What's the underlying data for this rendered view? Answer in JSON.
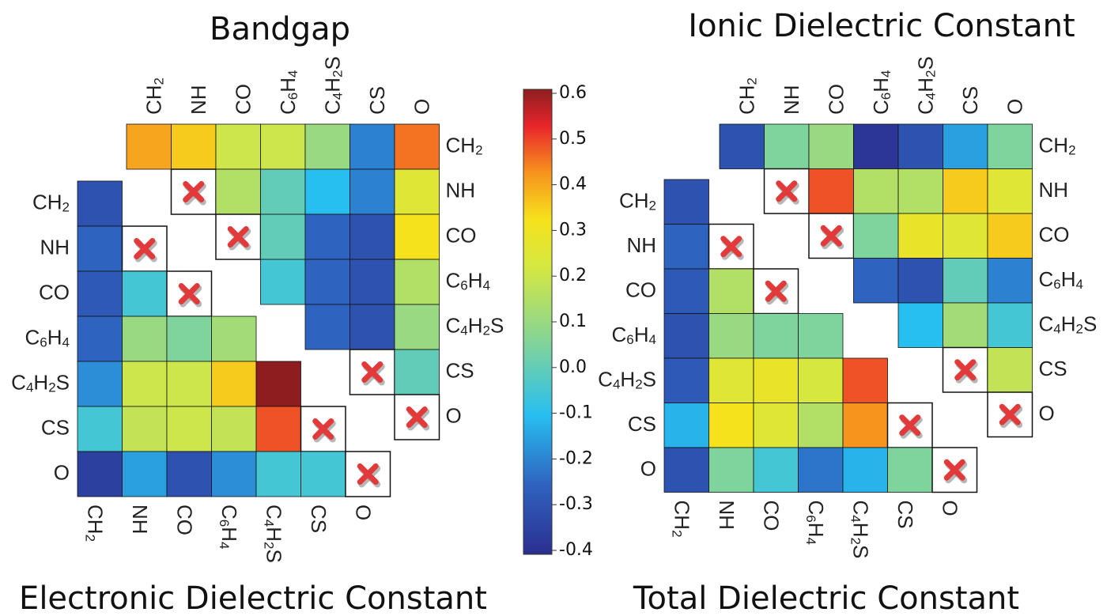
{
  "colorbar": {
    "ticks": [
      "0.6",
      "0.5",
      "0.4",
      "0.3",
      "0.2",
      "0.1",
      "0.0",
      "-0.1",
      "-0.2",
      "-0.3",
      "-0.4"
    ],
    "range": [
      -0.4,
      0.6
    ]
  },
  "chart_data": [
    {
      "type": "heatmap",
      "title": "Bandgap",
      "labels": [
        "CH2",
        "NH",
        "CO",
        "C6H4",
        "C4H2S",
        "CS",
        "O"
      ],
      "layout": "upper-triangle",
      "cells": [
        [
          0.4,
          0.35,
          0.2,
          0.2,
          0.1,
          -0.2,
          0.45
        ],
        [
          null,
          "x",
          0.15,
          0.0,
          -0.1,
          -0.2,
          0.25
        ],
        [
          null,
          null,
          "x",
          0.0,
          -0.25,
          -0.3,
          0.32
        ],
        [
          null,
          null,
          null,
          -0.05,
          -0.25,
          -0.3,
          0.15
        ],
        [
          null,
          null,
          null,
          null,
          -0.25,
          -0.3,
          0.1
        ],
        [
          null,
          null,
          null,
          null,
          null,
          "x",
          0.0
        ],
        [
          null,
          null,
          null,
          null,
          null,
          null,
          "x"
        ]
      ]
    },
    {
      "type": "heatmap",
      "title": "Electronic Dielectric Constant",
      "labels": [
        "CH2",
        "NH",
        "CO",
        "C6H4",
        "C4H2S",
        "CS",
        "O"
      ],
      "layout": "lower-triangle",
      "cells": [
        [
          -0.3,
          null,
          null,
          null,
          null,
          null,
          null
        ],
        [
          -0.25,
          "x",
          null,
          null,
          null,
          null,
          null
        ],
        [
          -0.28,
          -0.05,
          "x",
          null,
          null,
          null,
          null
        ],
        [
          -0.25,
          0.1,
          0.05,
          0.12,
          null,
          null,
          null
        ],
        [
          -0.18,
          0.2,
          0.2,
          0.35,
          0.6,
          null,
          null
        ],
        [
          -0.05,
          0.18,
          0.2,
          0.18,
          0.48,
          "x",
          null
        ],
        [
          -0.35,
          -0.15,
          -0.3,
          -0.18,
          -0.05,
          -0.05,
          "x"
        ]
      ]
    },
    {
      "type": "heatmap",
      "title": "Ionic Dielectric Constant",
      "labels": [
        "CH2",
        "NH",
        "CO",
        "C6H4",
        "C4H2S",
        "CS",
        "O"
      ],
      "layout": "upper-triangle",
      "cells": [
        [
          -0.3,
          0.05,
          0.1,
          -0.38,
          -0.3,
          -0.15,
          0.05
        ],
        [
          null,
          "x",
          0.48,
          0.15,
          0.15,
          0.35,
          0.25
        ],
        [
          null,
          null,
          "x",
          0.05,
          0.28,
          0.25,
          0.35
        ],
        [
          null,
          null,
          null,
          -0.25,
          -0.3,
          0.0,
          -0.2
        ],
        [
          null,
          null,
          null,
          null,
          -0.1,
          0.12,
          -0.05
        ],
        [
          null,
          null,
          null,
          null,
          null,
          "x",
          0.18
        ],
        [
          null,
          null,
          null,
          null,
          null,
          null,
          "x"
        ]
      ]
    },
    {
      "type": "heatmap",
      "title": "Total Dielectric Constant",
      "labels": [
        "CH2",
        "NH",
        "CO",
        "C6H4",
        "C4H2S",
        "CS",
        "O"
      ],
      "layout": "lower-triangle",
      "cells": [
        [
          -0.3,
          null,
          null,
          null,
          null,
          null,
          null
        ],
        [
          -0.25,
          "x",
          null,
          null,
          null,
          null,
          null
        ],
        [
          -0.28,
          0.15,
          "x",
          null,
          null,
          null,
          null
        ],
        [
          -0.3,
          0.1,
          0.05,
          0.05,
          null,
          null,
          null
        ],
        [
          -0.28,
          0.25,
          0.28,
          0.22,
          0.48,
          null,
          null
        ],
        [
          -0.12,
          0.32,
          0.25,
          0.15,
          0.42,
          "x",
          null
        ],
        [
          -0.3,
          0.05,
          -0.05,
          -0.22,
          -0.12,
          0.05,
          "x"
        ]
      ]
    }
  ]
}
